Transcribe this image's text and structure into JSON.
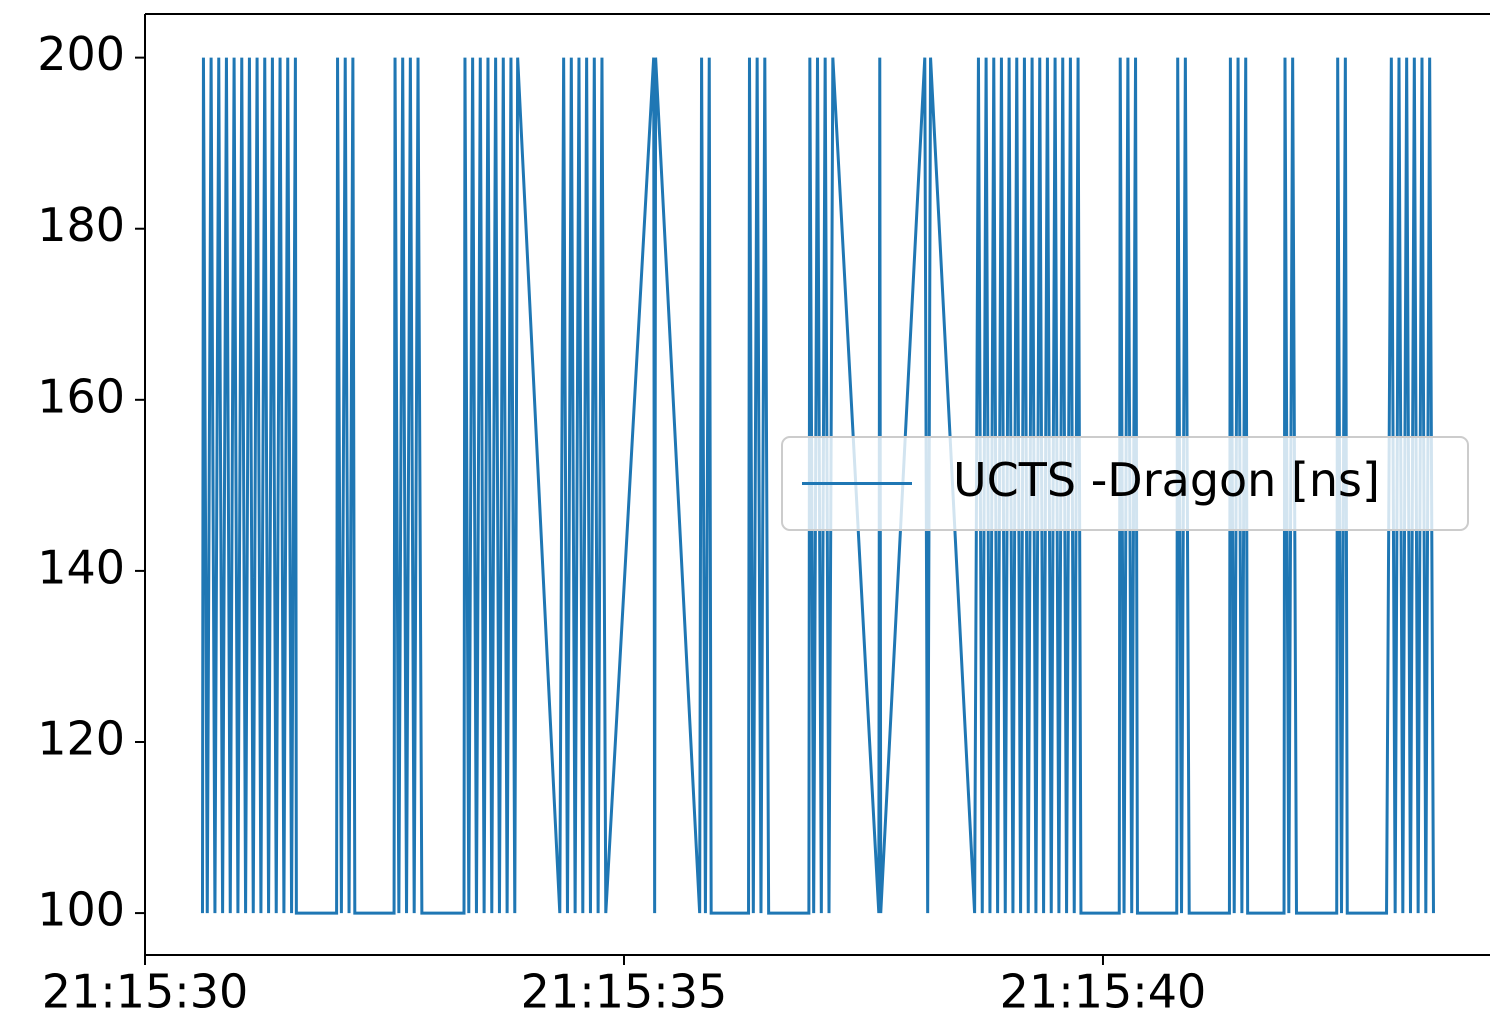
{
  "chart_data": {
    "type": "line",
    "x": [
      76530.6,
      76530.61,
      76530.65,
      76530.69,
      76530.73,
      76530.77,
      76530.81,
      76530.85,
      76530.89,
      76530.93,
      76530.97,
      76531.01,
      76531.05,
      76531.09,
      76531.13,
      76531.17,
      76531.21,
      76531.25,
      76531.29,
      76531.33,
      76531.37,
      76531.41,
      76531.45,
      76531.49,
      76531.53,
      76531.57,
      76531.58,
      76532.0,
      76532.01,
      76532.05,
      76532.09,
      76532.13,
      76532.17,
      76532.19,
      76532.6,
      76532.61,
      76532.65,
      76532.69,
      76532.73,
      76532.77,
      76532.81,
      76532.85,
      76532.89,
      76533.33,
      76533.34,
      76533.38,
      76533.42,
      76533.46,
      76533.5,
      76533.54,
      76533.58,
      76533.62,
      76533.66,
      76533.7,
      76533.74,
      76533.78,
      76533.82,
      76533.86,
      76533.89,
      76534.33,
      76534.37,
      76534.41,
      76534.45,
      76534.49,
      76534.53,
      76534.57,
      76534.61,
      76534.65,
      76534.69,
      76534.73,
      76534.77,
      76534.81,
      76535.31,
      76535.32,
      76535.33,
      76535.79,
      76535.81,
      76535.85,
      76535.89,
      76535.91,
      76536.3,
      76536.31,
      76536.35,
      76536.39,
      76536.43,
      76536.47,
      76536.51,
      76536.93,
      76536.94,
      76536.98,
      76537.02,
      76537.06,
      76537.1,
      76537.14,
      76537.18,
      76537.66,
      76537.67,
      76537.68,
      76538.14,
      76538.17,
      76538.2,
      76538.66,
      76538.7,
      76538.74,
      76538.78,
      76538.82,
      76538.86,
      76538.9,
      76538.94,
      76538.98,
      76539.02,
      76539.06,
      76539.1,
      76539.14,
      76539.18,
      76539.22,
      76539.26,
      76539.3,
      76539.34,
      76539.38,
      76539.42,
      76539.46,
      76539.5,
      76539.54,
      76539.58,
      76539.62,
      76539.66,
      76539.7,
      76539.74,
      76539.77,
      76540.17,
      76540.18,
      76540.22,
      76540.26,
      76540.3,
      76540.34,
      76540.36,
      76540.77,
      76540.78,
      76540.82,
      76540.86,
      76540.9,
      76541.32,
      76541.33,
      76541.37,
      76541.41,
      76541.45,
      76541.49,
      76541.51,
      76541.89,
      76541.9,
      76541.94,
      76541.98,
      76542.02,
      76542.44,
      76542.45,
      76542.49,
      76542.53,
      76542.55,
      76542.96,
      76543.01,
      76543.05,
      76543.09,
      76543.13,
      76543.17,
      76543.21,
      76543.25,
      76543.29,
      76543.33,
      76543.37,
      76543.41,
      76543.45
    ],
    "series": [
      {
        "name": "UCTS -Dragon [ns]",
        "color": "#1f77b4",
        "values": [
          100,
          200,
          100,
          200,
          100,
          200,
          100,
          200,
          100,
          200,
          100,
          200,
          100,
          200,
          100,
          200,
          100,
          200,
          100,
          200,
          100,
          200,
          100,
          200,
          100,
          200,
          100,
          100,
          200,
          100,
          200,
          100,
          200,
          100,
          100,
          200,
          100,
          200,
          100,
          200,
          100,
          200,
          100,
          100,
          200,
          100,
          200,
          100,
          200,
          100,
          200,
          100,
          200,
          100,
          200,
          100,
          200,
          100,
          200,
          100,
          200,
          100,
          200,
          100,
          200,
          100,
          200,
          100,
          200,
          100,
          200,
          100,
          200,
          100,
          200,
          100,
          200,
          100,
          200,
          100,
          100,
          200,
          100,
          200,
          100,
          200,
          100,
          100,
          200,
          100,
          200,
          100,
          200,
          100,
          200,
          100,
          200,
          100,
          200,
          100,
          200,
          100,
          200,
          100,
          200,
          100,
          200,
          100,
          200,
          100,
          200,
          100,
          200,
          100,
          200,
          100,
          200,
          100,
          200,
          100,
          200,
          100,
          200,
          100,
          200,
          100,
          200,
          100,
          200,
          100,
          100,
          200,
          100,
          200,
          100,
          200,
          100,
          100,
          200,
          100,
          200,
          100,
          100,
          200,
          100,
          200,
          100,
          200,
          100,
          100,
          200,
          100,
          200,
          100,
          100,
          200,
          100,
          200,
          100,
          100,
          200,
          100,
          200,
          100,
          200,
          100,
          200,
          100,
          200,
          100,
          200,
          100
        ]
      }
    ],
    "xlim": [
      76530,
      76544.04
    ],
    "xticks": [
      {
        "value": 76530,
        "label": "21:15:30"
      },
      {
        "value": 76535,
        "label": "21:15:35"
      },
      {
        "value": 76540,
        "label": "21:15:40"
      }
    ],
    "ylim": [
      95.1,
      205.1
    ],
    "yticks": [
      100,
      120,
      140,
      160,
      180,
      200
    ],
    "legend": "center right"
  }
}
